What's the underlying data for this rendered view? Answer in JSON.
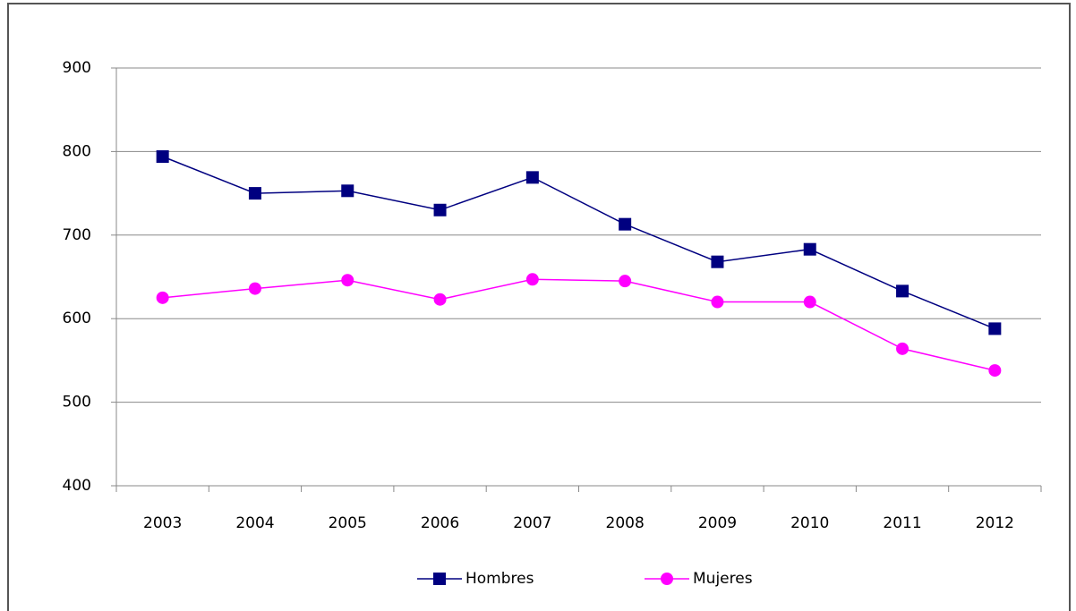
{
  "chart_data": {
    "type": "line",
    "categories": [
      "2003",
      "2004",
      "2005",
      "2006",
      "2007",
      "2008",
      "2009",
      "2010",
      "2011",
      "2012"
    ],
    "series": [
      {
        "name": "Hombres",
        "color": "#000080",
        "marker": "square",
        "values": [
          794,
          750,
          753,
          730,
          769,
          713,
          668,
          683,
          633,
          588
        ]
      },
      {
        "name": "Mujeres",
        "color": "#ff00ff",
        "marker": "circle",
        "values": [
          625,
          636,
          646,
          623,
          647,
          645,
          620,
          620,
          564,
          538
        ]
      }
    ],
    "ylim": [
      400,
      900
    ],
    "yticks": [
      400,
      500,
      600,
      700,
      800,
      900
    ],
    "grid": true,
    "legend": "bottom"
  }
}
